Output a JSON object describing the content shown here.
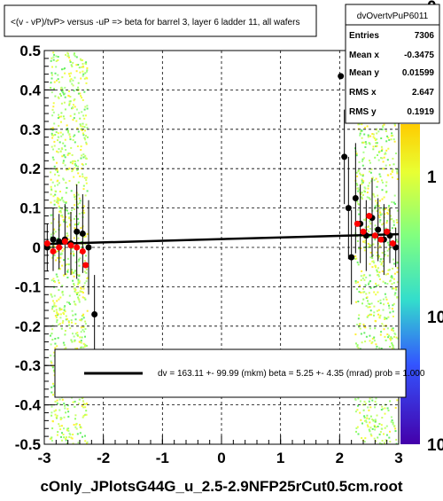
{
  "chart_data": {
    "type": "scatter",
    "title": "<(v - vP)/tvP> versus  -uP => beta for barrel 3, layer 6 ladder 11, all  wafers",
    "xlabel": "",
    "ylabel": "",
    "xlim": [
      -3,
      3
    ],
    "ylim": [
      -0.5,
      0.5
    ],
    "x_ticks": [
      "-3",
      "-2",
      "-1",
      "0",
      "1",
      "2",
      "3"
    ],
    "y_ticks": [
      "-0.5",
      "-0.4",
      "-0.3",
      "-0.2",
      "-0.1",
      "0",
      "0.1",
      "0.2",
      "0.3",
      "0.4",
      "0.5"
    ],
    "grid": true,
    "colorbar_labels": [
      "0",
      "1",
      "10",
      "10"
    ],
    "stats": {
      "name": "dvOvertvPuP6011",
      "rows": [
        {
          "label": "Entries",
          "value": "7306"
        },
        {
          "label": "Mean x",
          "value": "-0.3475"
        },
        {
          "label": "Mean y",
          "value": "0.01599"
        },
        {
          "label": "RMS x",
          "value": "2.647"
        },
        {
          "label": "RMS y",
          "value": "0.1919"
        }
      ]
    },
    "fit_legend": "dv =  163.11 +- 99.99 (mkm) beta =    5.25 +-  4.35 (mrad) prob = 1.000",
    "fit_line": {
      "x": [
        -3,
        3
      ],
      "y": [
        0.00852,
        0.03352
      ]
    },
    "series": [
      {
        "color": "#000000",
        "points": [
          {
            "x": -2.95,
            "y": 0.0,
            "err": 0.06
          },
          {
            "x": -2.85,
            "y": 0.02,
            "err": 0.08
          },
          {
            "x": -2.75,
            "y": 0.015,
            "err": 0.07
          },
          {
            "x": -2.65,
            "y": 0.02,
            "err": 0.09
          },
          {
            "x": -2.55,
            "y": 0.01,
            "err": 0.08
          },
          {
            "x": -2.45,
            "y": 0.04,
            "err": 0.12
          },
          {
            "x": -2.35,
            "y": 0.035,
            "err": 0.1
          },
          {
            "x": -2.25,
            "y": 0.0,
            "err": 0.12
          },
          {
            "x": -2.15,
            "y": -0.17,
            "err": 0.1
          },
          {
            "x": 2.02,
            "y": 0.435,
            "err": 0.0
          },
          {
            "x": 2.08,
            "y": 0.23,
            "err": 0.12
          },
          {
            "x": 2.15,
            "y": 0.1,
            "err": 0.13
          },
          {
            "x": 2.2,
            "y": -0.025,
            "err": 0.12
          },
          {
            "x": 2.27,
            "y": 0.125,
            "err": 0.14
          },
          {
            "x": 2.35,
            "y": 0.06,
            "err": 0.1
          },
          {
            "x": 2.45,
            "y": 0.03,
            "err": 0.09
          },
          {
            "x": 2.55,
            "y": 0.075,
            "err": 0.1
          },
          {
            "x": 2.65,
            "y": 0.045,
            "err": 0.08
          },
          {
            "x": 2.75,
            "y": 0.02,
            "err": 0.09
          },
          {
            "x": 2.85,
            "y": 0.03,
            "err": 0.07
          },
          {
            "x": 2.95,
            "y": 0.0,
            "err": 0.05
          }
        ]
      },
      {
        "color": "#ff0000",
        "points": [
          {
            "x": -2.95,
            "y": 0.01
          },
          {
            "x": -2.85,
            "y": -0.01
          },
          {
            "x": -2.75,
            "y": 0.0
          },
          {
            "x": -2.65,
            "y": 0.015
          },
          {
            "x": -2.55,
            "y": 0.005
          },
          {
            "x": -2.45,
            "y": 0.0
          },
          {
            "x": -2.35,
            "y": -0.01
          },
          {
            "x": -2.3,
            "y": -0.045
          },
          {
            "x": 2.3,
            "y": 0.06
          },
          {
            "x": 2.4,
            "y": 0.04
          },
          {
            "x": 2.5,
            "y": 0.08
          },
          {
            "x": 2.6,
            "y": 0.03
          },
          {
            "x": 2.7,
            "y": 0.02
          },
          {
            "x": 2.8,
            "y": 0.04
          },
          {
            "x": 2.9,
            "y": 0.01
          }
        ]
      }
    ]
  },
  "footer": {
    "caption": "cOnly_JPlotsG44G_u_2.5-2.9NFP25rCut0.5cm.root"
  }
}
